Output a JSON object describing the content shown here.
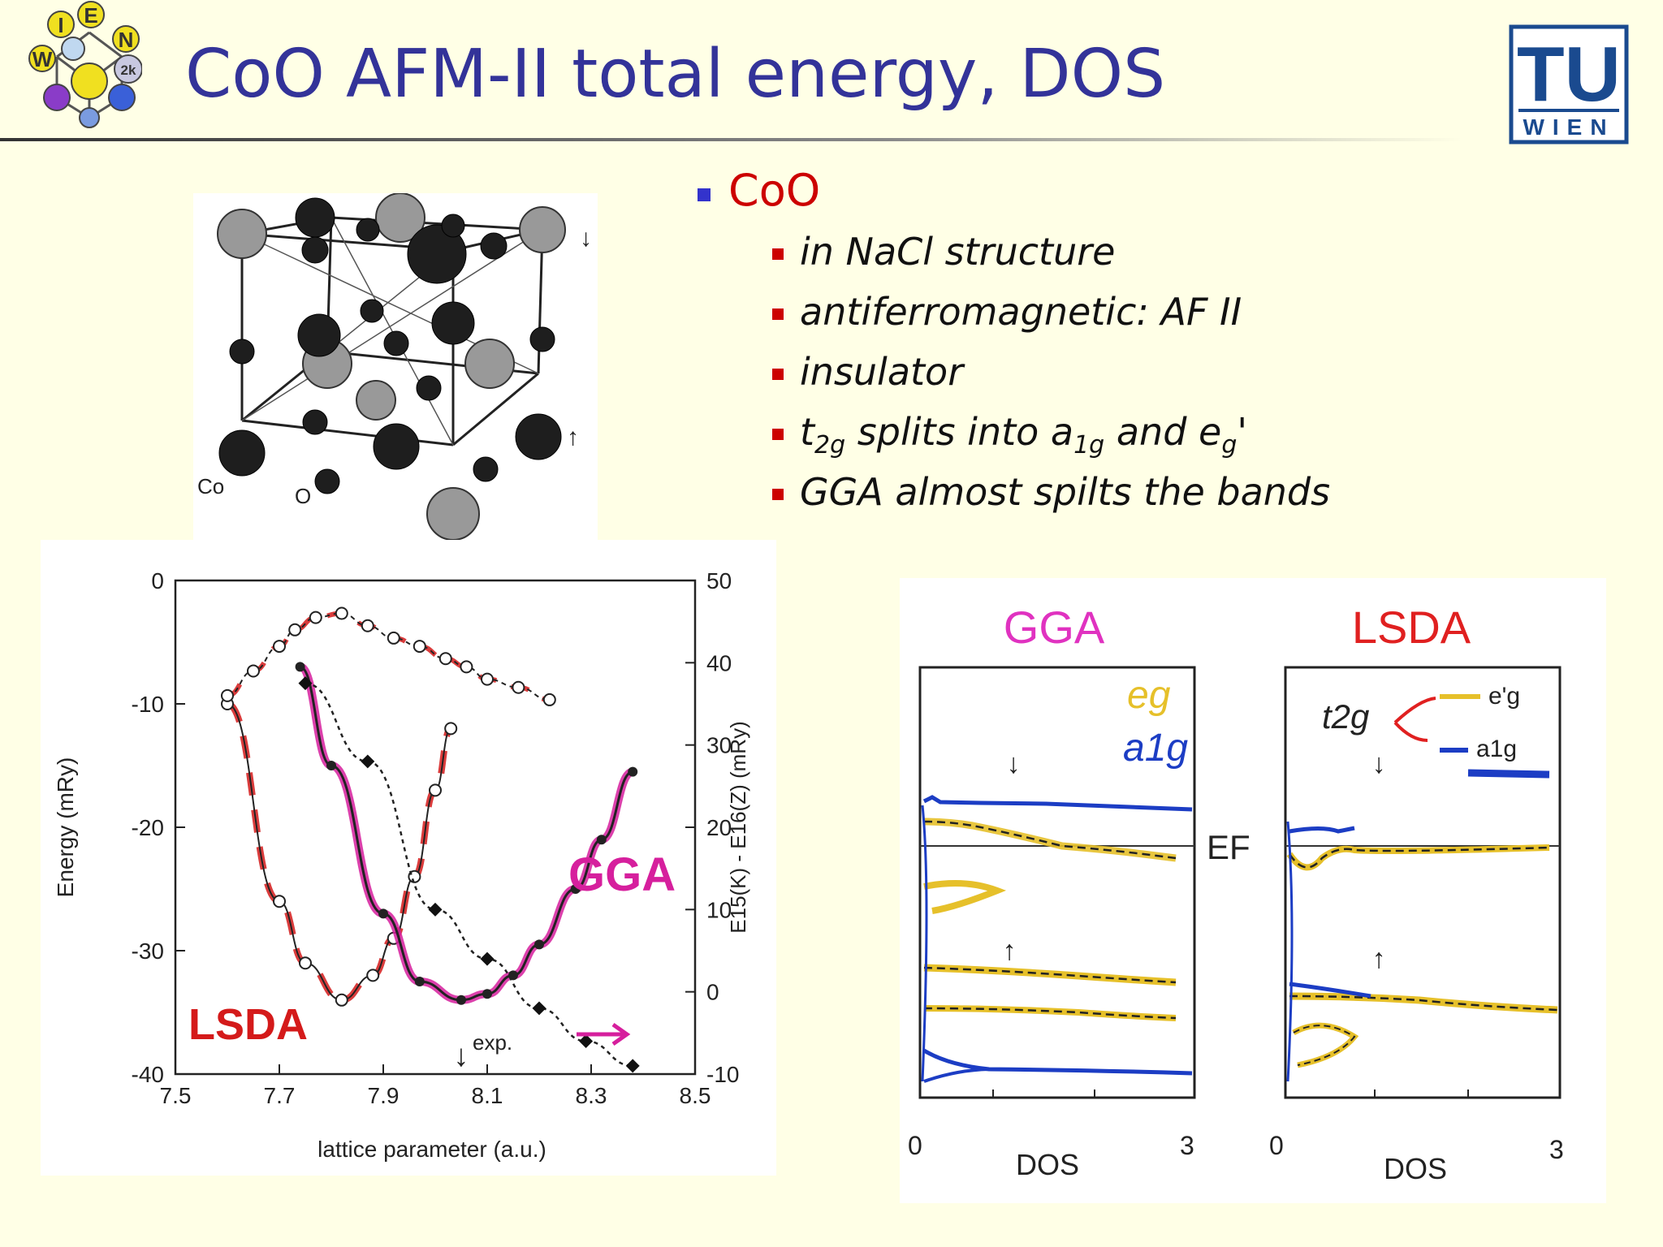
{
  "title": "CoO AFM-II total energy, DOS",
  "logos": {
    "wien_letters": [
      "W",
      "I",
      "E",
      "N",
      "2k"
    ],
    "tu_top": "TU",
    "tu_bottom": "WIEN"
  },
  "bullets": {
    "main": "CoO",
    "items": [
      {
        "parts": [
          {
            "t": "in NaCl structure"
          }
        ]
      },
      {
        "parts": [
          {
            "t": "antiferromagnetic: AF II"
          }
        ]
      },
      {
        "parts": [
          {
            "t": "insulator"
          }
        ]
      },
      {
        "parts": [
          {
            "t": "t"
          },
          {
            "t": "2g",
            "sub": true
          },
          {
            "t": " splits  into a"
          },
          {
            "t": "1g",
            "sub": true
          },
          {
            "t": " and e"
          },
          {
            "t": "g",
            "sub": true
          },
          {
            "t": "'"
          }
        ]
      },
      {
        "parts": [
          {
            "t": "GGA almost spilts the bands"
          }
        ]
      }
    ]
  },
  "crystal": {
    "label_co": "Co",
    "label_o": "O",
    "spin_down": "↓",
    "spin_up": "↑"
  },
  "chart_data": [
    {
      "type": "line",
      "xlabel": "lattice parameter (a.u.)",
      "ylabel": "Energy (mRy)",
      "y2label": "E15(K) - E16(Z)  (mRy)",
      "xlim": [
        7.5,
        8.5
      ],
      "ylim": [
        -40,
        0
      ],
      "y2lim": [
        -10,
        50
      ],
      "xticks": [
        "7.5",
        "7.7",
        "7.9",
        "8.1",
        "8.3",
        "8.5"
      ],
      "yticks": [
        "0",
        "-10",
        "-20",
        "-30",
        "-40"
      ],
      "y2ticks": [
        "50",
        "40",
        "30",
        "20",
        "10",
        "0",
        "-10"
      ],
      "annotations": {
        "exp": "exp.",
        "exp_arrow": "↓",
        "lsda": "LSDA",
        "gga": "GGA"
      },
      "exp_x": 8.05,
      "series": [
        {
          "name": "LSDA",
          "axis": "left",
          "x": [
            7.6,
            7.7,
            7.75,
            7.82,
            7.88,
            7.92,
            7.96,
            8.0,
            8.03
          ],
          "y": [
            -10,
            -26,
            -31,
            -34,
            -32,
            -29,
            -24,
            -17,
            -12
          ]
        },
        {
          "name": "GGA",
          "axis": "left",
          "x": [
            7.74,
            7.8,
            7.9,
            7.97,
            8.05,
            8.1,
            8.15,
            8.2,
            8.27,
            8.32,
            8.38
          ],
          "y": [
            -7,
            -15,
            -27,
            -32.5,
            -34,
            -33.5,
            -32,
            -29.5,
            -25,
            -21,
            -15.5
          ]
        },
        {
          "name": "LSDA gap",
          "axis": "right",
          "x": [
            7.6,
            7.65,
            7.7,
            7.73,
            7.77,
            7.82,
            7.87,
            7.92,
            7.97,
            8.02,
            8.06,
            8.1,
            8.16,
            8.22
          ],
          "y": [
            36,
            39,
            42,
            44,
            45.5,
            46,
            44.5,
            43,
            42,
            40.5,
            39.5,
            38,
            37,
            35.5
          ]
        },
        {
          "name": "GGA gap",
          "axis": "right",
          "x": [
            7.75,
            7.87,
            8.0,
            8.1,
            8.2,
            8.29,
            8.38
          ],
          "y": [
            37.5,
            28,
            10,
            4,
            -2,
            -6,
            -9
          ]
        }
      ]
    },
    {
      "type": "line",
      "title": "GGA",
      "xlabel": "DOS",
      "xticks": [
        "0",
        "3"
      ],
      "ef_label": "EF",
      "annotations": {
        "eg": "eg",
        "a1g": "a1g",
        "down": "↓",
        "up": "↑"
      }
    },
    {
      "type": "line",
      "title": "LSDA",
      "xlabel": "DOS",
      "xticks": [
        "0",
        "3"
      ],
      "annotations": {
        "t2g": "t2g",
        "eg": "e'g",
        "a1g": "a1g",
        "down": "↓",
        "up": "↑"
      }
    }
  ],
  "colors": {
    "title": "#333399",
    "accent": "#cc0000",
    "gga": "#d61f9d",
    "lsda": "#d41a1a",
    "eg": "#e6c02a",
    "a1g": "#1c3dc4"
  }
}
